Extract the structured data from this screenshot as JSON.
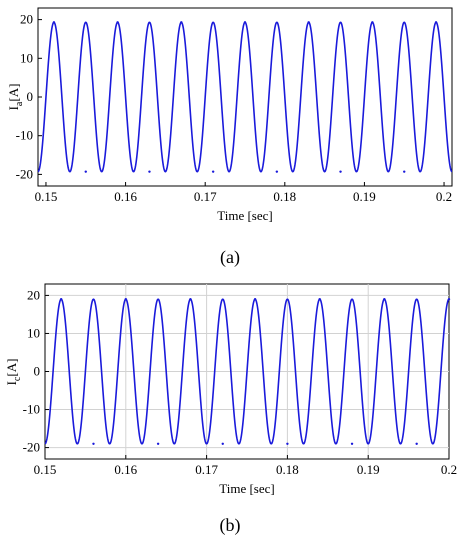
{
  "chart_data": [
    {
      "type": "line",
      "panel_label": "(a)",
      "xlabel": "Time [sec]",
      "ylabel": "I_a [A]",
      "ylabel_main": "I",
      "ylabel_sub": "a",
      "ylabel_unit": "[A]",
      "xlim": [
        0.149,
        0.201
      ],
      "ylim": [
        -23,
        23
      ],
      "x_ticks": [
        0.15,
        0.16,
        0.17,
        0.18,
        0.19,
        0.2
      ],
      "x_tick_labels": [
        "0.15",
        "0.16",
        "0.17",
        "0.18",
        "0.19",
        "0.2"
      ],
      "y_ticks": [
        -20,
        -10,
        0,
        10,
        20
      ],
      "y_tick_labels": [
        "-20",
        "-10",
        "0",
        "10",
        "20"
      ],
      "grid": false,
      "series_color": "#1a1adb",
      "series": [
        {
          "waveform": "sine",
          "amplitude": 19.3,
          "frequency": 250,
          "peak_time": 0.151,
          "x_range": [
            0.149,
            0.201
          ],
          "peaks": [
            {
              "x": 0.151,
              "y": 19.3
            },
            {
              "x": 0.155,
              "y": -19.3
            },
            {
              "x": 0.159,
              "y": 19.3
            },
            {
              "x": 0.163,
              "y": -19.3
            },
            {
              "x": 0.167,
              "y": 19.3
            },
            {
              "x": 0.171,
              "y": -19.3
            },
            {
              "x": 0.175,
              "y": 19.3
            },
            {
              "x": 0.179,
              "y": -19.3
            },
            {
              "x": 0.183,
              "y": 19.3
            },
            {
              "x": 0.187,
              "y": -19.3
            },
            {
              "x": 0.191,
              "y": 19.3
            },
            {
              "x": 0.195,
              "y": -19.3
            },
            {
              "x": 0.199,
              "y": 19.3
            }
          ]
        }
      ]
    },
    {
      "type": "line",
      "panel_label": "(b)",
      "xlabel": "Time [sec]",
      "ylabel": "I_c [A]",
      "ylabel_main": "I",
      "ylabel_sub": "c",
      "ylabel_unit": "[A]",
      "xlim": [
        0.15,
        0.2
      ],
      "ylim": [
        -23,
        23
      ],
      "x_ticks": [
        0.15,
        0.16,
        0.17,
        0.18,
        0.19,
        0.2
      ],
      "x_tick_labels": [
        "0.15",
        "0.16",
        "0.17",
        "0.18",
        "0.19",
        "0.2"
      ],
      "y_ticks": [
        -20,
        -10,
        0,
        10,
        20
      ],
      "y_tick_labels": [
        "-20",
        "-10",
        "0",
        "10",
        "20"
      ],
      "grid": true,
      "series_color": "#1a1adb",
      "series": [
        {
          "waveform": "sine",
          "amplitude": 19.0,
          "frequency": 250,
          "peak_time": 0.152,
          "x_range": [
            0.15,
            0.2
          ],
          "peaks": [
            {
              "x": 0.152,
              "y": 19.0
            },
            {
              "x": 0.156,
              "y": -19.0
            },
            {
              "x": 0.16,
              "y": 19.0
            },
            {
              "x": 0.164,
              "y": -19.0
            },
            {
              "x": 0.168,
              "y": 19.0
            },
            {
              "x": 0.172,
              "y": -19.0
            },
            {
              "x": 0.176,
              "y": 19.0
            },
            {
              "x": 0.18,
              "y": -19.0
            },
            {
              "x": 0.184,
              "y": 19.0
            },
            {
              "x": 0.188,
              "y": -19.0
            },
            {
              "x": 0.192,
              "y": 19.0
            },
            {
              "x": 0.196,
              "y": -19.0
            },
            {
              "x": 0.2,
              "y": 19.0
            }
          ]
        }
      ]
    }
  ]
}
